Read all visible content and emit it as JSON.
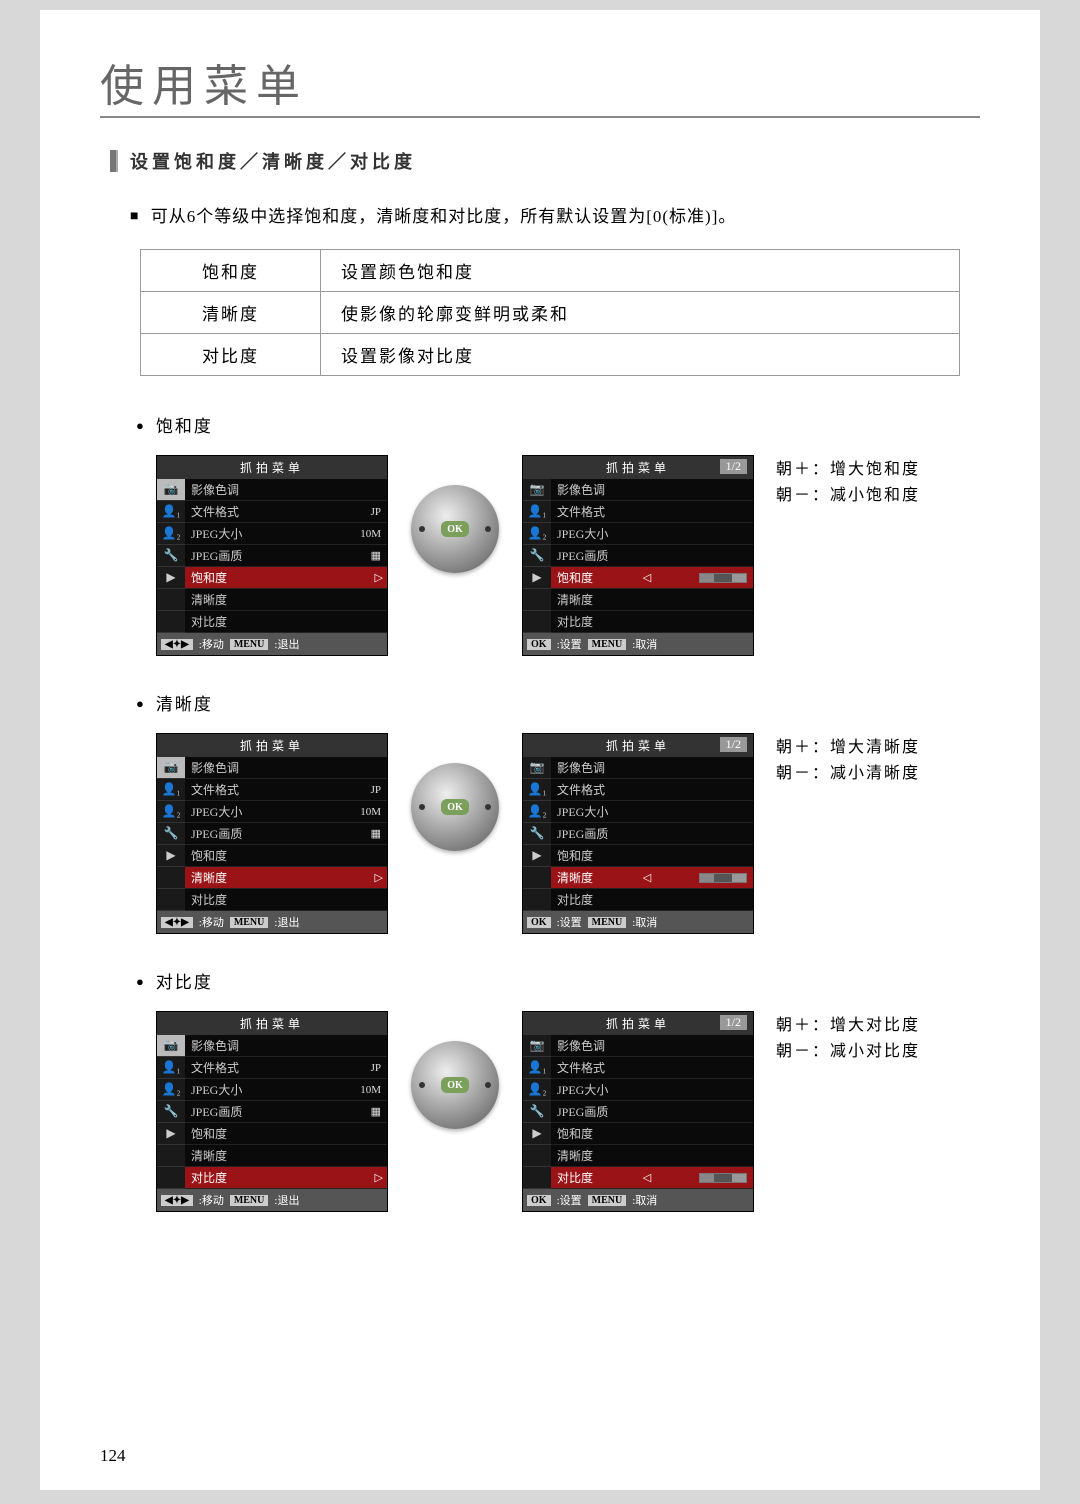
{
  "page_title": "使用菜单",
  "section_title": "设置饱和度／清晰度／对比度",
  "intro_text": "可从6个等级中选择饱和度，清晰度和对比度，所有默认设置为[0(标准)]。",
  "table": [
    {
      "name": "饱和度",
      "desc": "设置颜色饱和度"
    },
    {
      "name": "清晰度",
      "desc": "使影像的轮廓变鲜明或柔和"
    },
    {
      "name": "对比度",
      "desc": "设置影像对比度"
    }
  ],
  "menu_header": "抓拍菜单",
  "page_indicator": "1/2",
  "tabs": [
    "📷",
    "👤₁",
    "👤₂",
    "🔧",
    "▶"
  ],
  "menu_items": [
    {
      "label": "影像色调",
      "val": ""
    },
    {
      "label": "文件格式",
      "val": "JP"
    },
    {
      "label": "JPEG大小",
      "val": "10M"
    },
    {
      "label": "JPEG画质",
      "val": "▦"
    },
    {
      "label": "饱和度",
      "val": ""
    },
    {
      "label": "清晰度",
      "val": ""
    },
    {
      "label": "对比度",
      "val": ""
    }
  ],
  "footer_left": {
    "k1": "◀✦▶",
    "t1": "移动",
    "k2": "MENU",
    "t2": "退出"
  },
  "footer_right": {
    "k1": "OK",
    "t1": "设置",
    "k2": "MENU",
    "t2": "取消"
  },
  "sections": [
    {
      "label": "饱和度",
      "sel_index": 4,
      "hint_plus": "朝＋：增大饱和度",
      "hint_minus": "朝－：减小饱和度"
    },
    {
      "label": "清晰度",
      "sel_index": 5,
      "hint_plus": "朝＋：增大清晰度",
      "hint_minus": "朝－：减小清晰度"
    },
    {
      "label": "对比度",
      "sel_index": 6,
      "hint_plus": "朝＋：增大对比度",
      "hint_minus": "朝－：减小对比度"
    }
  ],
  "page_number": "124",
  "colors": {
    "highlight": "#9a1316",
    "lcd_bg": "#000000",
    "page_bg": "#ffffff"
  }
}
